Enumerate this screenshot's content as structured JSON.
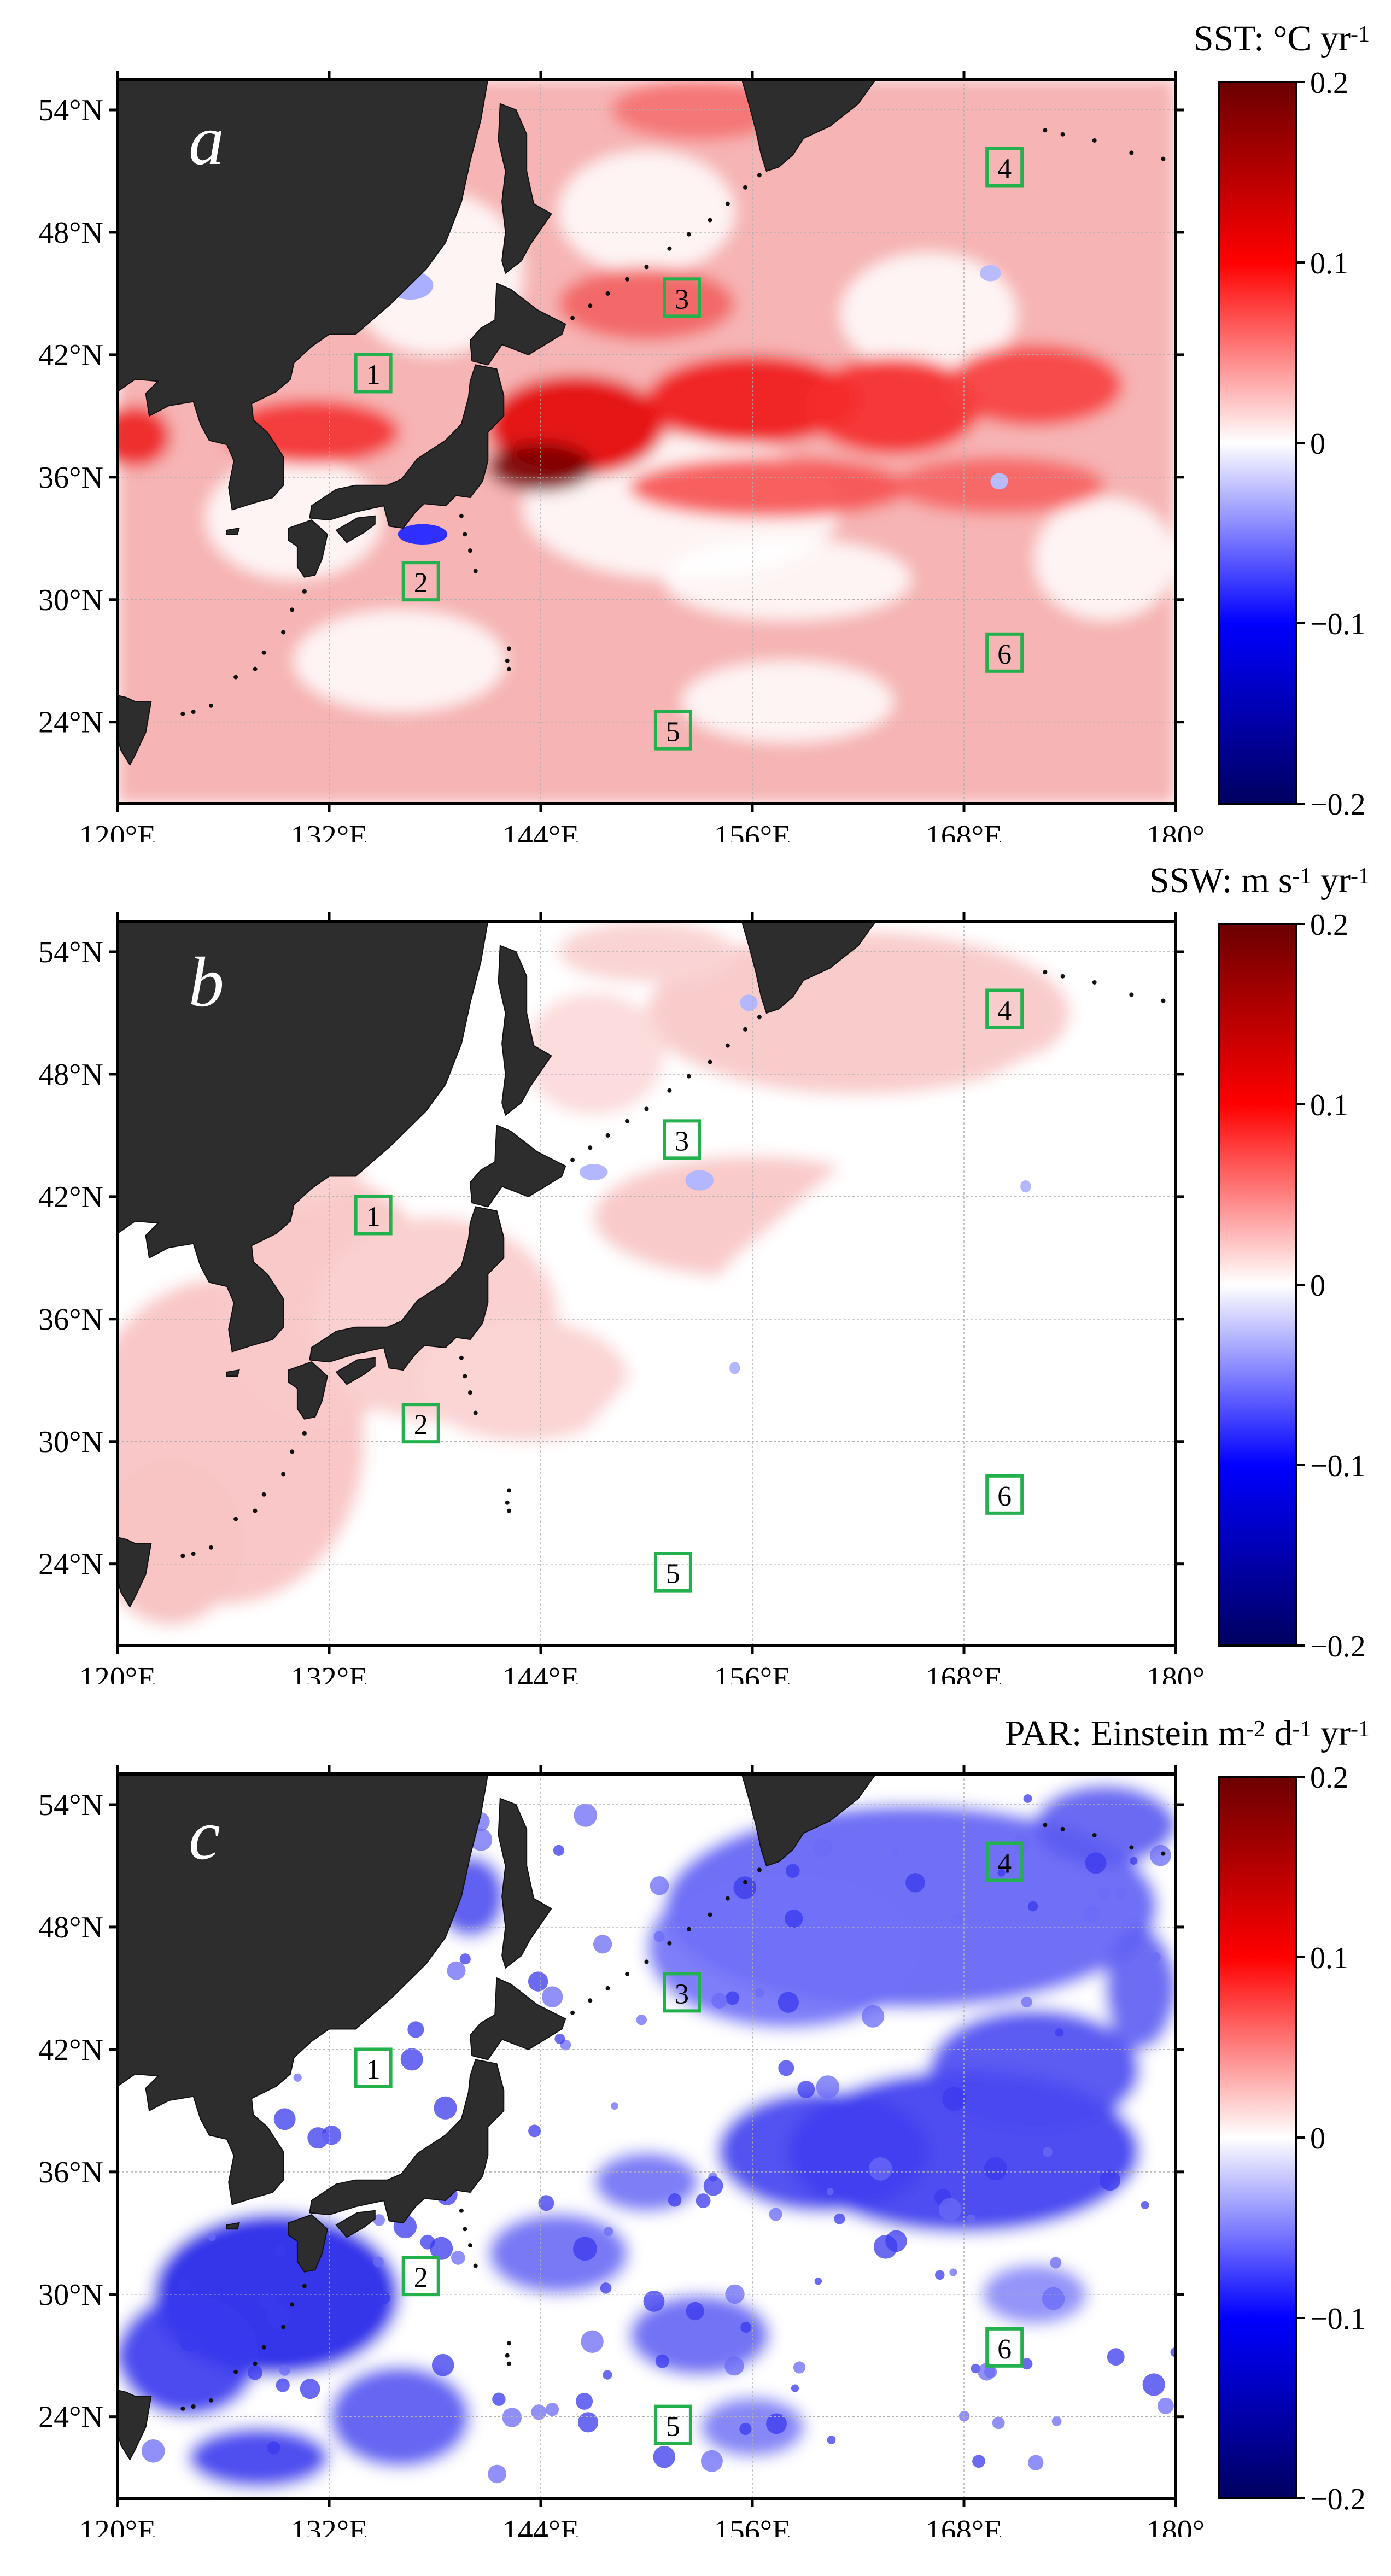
{
  "panels": [
    {
      "id": "a",
      "letter": "a",
      "variable": "SST",
      "units": "°C yr",
      "units_parts": [
        {
          "text": "SST: °C yr",
          "sup": false
        },
        {
          "text": "-1",
          "sup": true
        }
      ],
      "trend_character": "warming"
    },
    {
      "id": "b",
      "letter": "b",
      "variable": "SSW",
      "units_parts": [
        {
          "text": "SSW: m s",
          "sup": false
        },
        {
          "text": "-1",
          "sup": true
        },
        {
          "text": " yr",
          "sup": false
        },
        {
          "text": "-1",
          "sup": true
        }
      ],
      "trend_character": "weak increase"
    },
    {
      "id": "c",
      "letter": "c",
      "variable": "PAR",
      "units_parts": [
        {
          "text": "PAR: Einstein m",
          "sup": false
        },
        {
          "text": "-2",
          "sup": true
        },
        {
          "text": " d",
          "sup": false
        },
        {
          "text": "-1",
          "sup": true
        },
        {
          "text": " yr",
          "sup": false
        },
        {
          "text": "-1",
          "sup": true
        }
      ],
      "trend_character": "decrease"
    }
  ],
  "map": {
    "lon_range": [
      120,
      180
    ],
    "lat_range": [
      20,
      55.5
    ],
    "lon_ticks": [
      120,
      132,
      144,
      156,
      168,
      180
    ],
    "lon_tick_labels": [
      "120°E",
      "132°E",
      "144°E",
      "156°E",
      "168°E",
      "180°"
    ],
    "lat_ticks": [
      24,
      30,
      36,
      42,
      48,
      54
    ],
    "lat_tick_labels": [
      "24°N",
      "30°N",
      "36°N",
      "42°N",
      "48°N",
      "54°N"
    ]
  },
  "colorbar": {
    "range": [
      -0.2,
      0.2
    ],
    "ticks": [
      0.2,
      0.1,
      0,
      -0.1,
      -0.2
    ],
    "tick_labels": [
      "0.2",
      "0.1",
      "0",
      "−0.1",
      "−0.2"
    ],
    "colors": {
      "max": "#6b0000",
      "high": "#ff0000",
      "mid": "#ffffff",
      "low": "#0000ff",
      "min": "#000060"
    }
  },
  "regions": [
    {
      "label": "1",
      "lon": 134.5,
      "lat": 41.1
    },
    {
      "label": "2",
      "lon": 137.2,
      "lat": 30.9
    },
    {
      "label": "3",
      "lon": 152.0,
      "lat": 44.8
    },
    {
      "label": "4",
      "lon": 170.3,
      "lat": 51.2
    },
    {
      "label": "5",
      "lon": 151.5,
      "lat": 23.6
    },
    {
      "label": "6",
      "lon": 170.3,
      "lat": 27.4
    }
  ],
  "colors": {
    "land": "#2d2d2d",
    "region_box": "#22b14c",
    "grid": "#b0b0b0"
  }
}
